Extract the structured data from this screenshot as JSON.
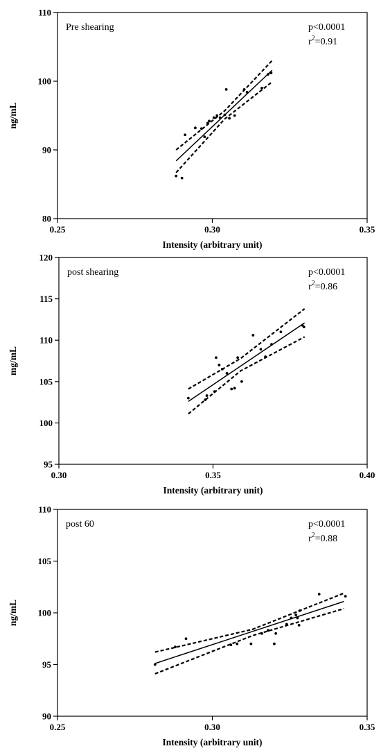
{
  "chart_data": [
    {
      "type": "scatter",
      "title": "Pre shearing",
      "xlabel": "Intensity (arbitrary unit)",
      "ylabel": "ng/mL",
      "xlim": [
        0.25,
        0.35
      ],
      "ylim": [
        80,
        110
      ],
      "xticks": [
        "0.25",
        "0.30",
        "0.35"
      ],
      "yticks": [
        "80",
        "90",
        "100",
        "110"
      ],
      "grid": false,
      "annotations": {
        "p": "p<0.0001",
        "r2_prefix": "r",
        "r2_exp": "2",
        "r2_value": "=0.91"
      },
      "points": [
        {
          "x": 0.2883,
          "y": 86.2
        },
        {
          "x": 0.2902,
          "y": 85.9
        },
        {
          "x": 0.2912,
          "y": 92.2
        },
        {
          "x": 0.2945,
          "y": 93.2
        },
        {
          "x": 0.2965,
          "y": 93.1
        },
        {
          "x": 0.2975,
          "y": 91.9
        },
        {
          "x": 0.2985,
          "y": 93.9
        },
        {
          "x": 0.299,
          "y": 94.2
        },
        {
          "x": 0.3005,
          "y": 94.7
        },
        {
          "x": 0.3015,
          "y": 95.0
        },
        {
          "x": 0.3025,
          "y": 94.7
        },
        {
          "x": 0.304,
          "y": 95.1
        },
        {
          "x": 0.3045,
          "y": 98.8
        },
        {
          "x": 0.3055,
          "y": 94.6
        },
        {
          "x": 0.3072,
          "y": 95.0
        },
        {
          "x": 0.3103,
          "y": 98.8
        },
        {
          "x": 0.3112,
          "y": 98.4
        },
        {
          "x": 0.316,
          "y": 99.0
        },
        {
          "x": 0.318,
          "y": 101.0
        },
        {
          "x": 0.319,
          "y": 101.2
        }
      ],
      "fit_line": {
        "x": [
          0.2883,
          0.3193
        ],
        "y": [
          88.4,
          101.6
        ]
      },
      "ci_upper": {
        "x": [
          0.2883,
          0.304,
          0.3193
        ],
        "y": [
          90.0,
          95.7,
          103.0
        ]
      },
      "ci_lower": {
        "x": [
          0.2883,
          0.304,
          0.3193
        ],
        "y": [
          86.7,
          94.5,
          99.9
        ]
      }
    },
    {
      "type": "scatter",
      "title": "post shearing",
      "xlabel": "Intensity (arbitrary unit)",
      "ylabel": "mg/mL",
      "xlim": [
        0.3,
        0.4
      ],
      "ylim": [
        95,
        120
      ],
      "xticks": [
        "0.30",
        "0.35",
        "0.40"
      ],
      "yticks": [
        "95",
        "100",
        "105",
        "110",
        "115",
        "120"
      ],
      "grid": false,
      "annotations": {
        "p": "p<0.0001",
        "r2_prefix": "r",
        "r2_exp": "2",
        "r2_value": "=0.86"
      },
      "points": [
        {
          "x": 0.342,
          "y": 103.0
        },
        {
          "x": 0.3475,
          "y": 102.8
        },
        {
          "x": 0.348,
          "y": 103.3
        },
        {
          "x": 0.3505,
          "y": 103.8
        },
        {
          "x": 0.351,
          "y": 107.9
        },
        {
          "x": 0.352,
          "y": 107.0
        },
        {
          "x": 0.353,
          "y": 106.5
        },
        {
          "x": 0.3545,
          "y": 106.0
        },
        {
          "x": 0.356,
          "y": 104.1
        },
        {
          "x": 0.357,
          "y": 104.2
        },
        {
          "x": 0.358,
          "y": 107.9
        },
        {
          "x": 0.3593,
          "y": 105.0
        },
        {
          "x": 0.363,
          "y": 110.6
        },
        {
          "x": 0.3655,
          "y": 108.9
        },
        {
          "x": 0.367,
          "y": 108.0
        },
        {
          "x": 0.369,
          "y": 109.5
        },
        {
          "x": 0.372,
          "y": 111.0
        },
        {
          "x": 0.379,
          "y": 111.8
        },
        {
          "x": 0.3795,
          "y": 111.6
        }
      ],
      "fit_line": {
        "x": [
          0.342,
          0.3797
        ],
        "y": [
          102.6,
          112.1
        ]
      },
      "ci_upper": {
        "x": [
          0.342,
          0.359,
          0.3797
        ],
        "y": [
          104.1,
          107.8,
          113.8
        ]
      },
      "ci_lower": {
        "x": [
          0.342,
          0.359,
          0.3797
        ],
        "y": [
          101.1,
          106.3,
          110.4
        ]
      }
    },
    {
      "type": "scatter",
      "title": "post 60",
      "xlabel": "Intensity (arbitrary unit)",
      "ylabel": "ng/mL",
      "xlim": [
        0.25,
        0.35
      ],
      "ylim": [
        90,
        110
      ],
      "xticks": [
        "0.25",
        "0.30",
        "0.35"
      ],
      "yticks": [
        "90",
        "95",
        "100",
        "105",
        "110"
      ],
      "grid": false,
      "annotations": {
        "p": "p<0.0001",
        "r2_prefix": "r",
        "r2_exp": "2",
        "r2_value": "=0.88"
      },
      "points": [
        {
          "x": 0.2815,
          "y": 95.0
        },
        {
          "x": 0.288,
          "y": 96.7
        },
        {
          "x": 0.2915,
          "y": 97.5
        },
        {
          "x": 0.306,
          "y": 96.9
        },
        {
          "x": 0.308,
          "y": 97.0
        },
        {
          "x": 0.3125,
          "y": 97.0
        },
        {
          "x": 0.316,
          "y": 98.0
        },
        {
          "x": 0.318,
          "y": 98.3
        },
        {
          "x": 0.32,
          "y": 97.0
        },
        {
          "x": 0.3205,
          "y": 98.0
        },
        {
          "x": 0.324,
          "y": 98.9
        },
        {
          "x": 0.3255,
          "y": 99.5
        },
        {
          "x": 0.327,
          "y": 99.8
        },
        {
          "x": 0.3275,
          "y": 99.5
        },
        {
          "x": 0.328,
          "y": 98.8
        },
        {
          "x": 0.3282,
          "y": 100.2
        },
        {
          "x": 0.3345,
          "y": 101.8
        },
        {
          "x": 0.343,
          "y": 101.6
        }
      ],
      "fit_line": {
        "x": [
          0.2815,
          0.3425
        ],
        "y": [
          95.1,
          101.1
        ]
      },
      "ci_upper": {
        "x": [
          0.2815,
          0.313,
          0.3425
        ],
        "y": [
          96.2,
          98.4,
          101.9
        ]
      },
      "ci_lower": {
        "x": [
          0.2815,
          0.313,
          0.3425
        ],
        "y": [
          94.1,
          97.8,
          100.4
        ]
      }
    }
  ]
}
